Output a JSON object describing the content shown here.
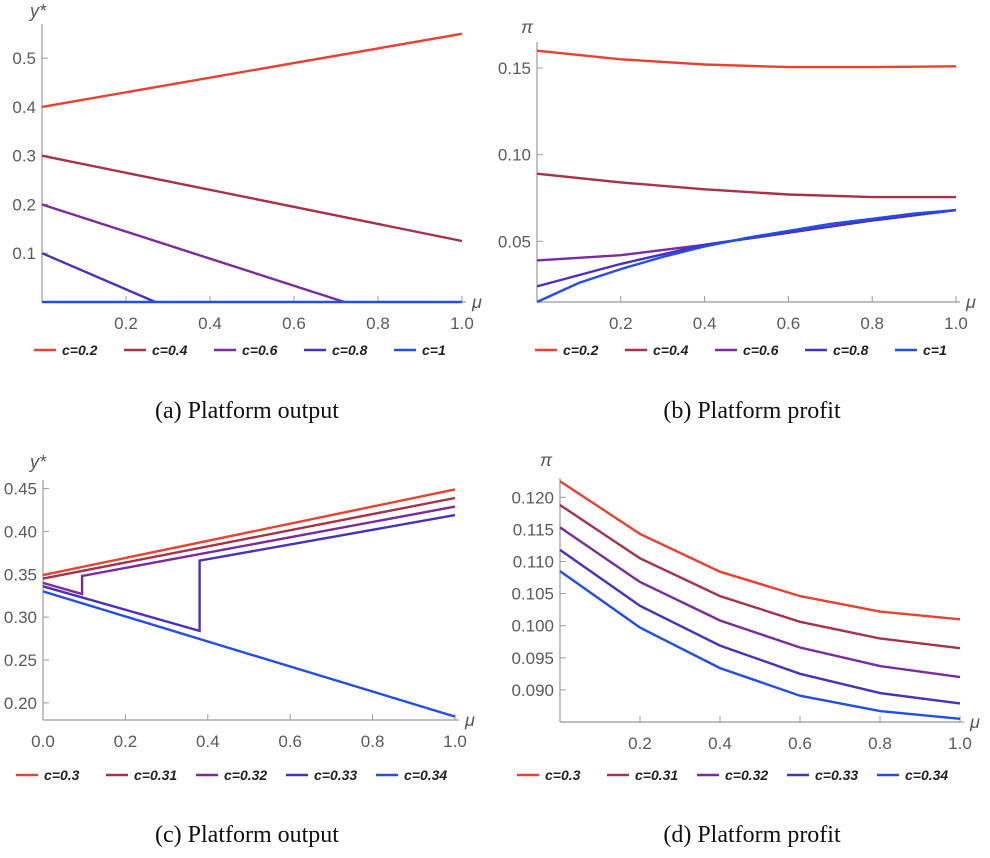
{
  "chart_data": [
    {
      "id": "a",
      "type": "line",
      "caption": "(a) Platform output",
      "xlabel": "μ",
      "ylabel": "y*",
      "xlim": [
        0,
        1
      ],
      "ylim": [
        0,
        0.57
      ],
      "xticks": [
        0.2,
        0.4,
        0.6,
        0.8,
        1.0
      ],
      "xtick_labels": [
        "0.2",
        "0.4",
        "0.6",
        "0.8",
        "1.0"
      ],
      "yticks": [
        0.1,
        0.2,
        0.3,
        0.4,
        0.5
      ],
      "ytick_labels": [
        "0.1",
        "0.2",
        "0.3",
        "0.4",
        "0.5"
      ],
      "legend_position": "bottom",
      "series": [
        {
          "name": "c=0.2",
          "color": "#e8412f",
          "x": [
            0,
            1
          ],
          "y": [
            0.4,
            0.55
          ]
        },
        {
          "name": "c=0.4",
          "color": "#a53249",
          "x": [
            0,
            1
          ],
          "y": [
            0.3,
            0.125
          ]
        },
        {
          "name": "c=0.6",
          "color": "#7a2b9e",
          "x": [
            0,
            0.72
          ],
          "y": [
            0.2,
            0.0
          ]
        },
        {
          "name": "c=0.8",
          "color": "#4a2fc0",
          "x": [
            0,
            0.27
          ],
          "y": [
            0.1,
            0.0
          ]
        },
        {
          "name": "c=1",
          "color": "#1f4fe6",
          "x": [
            0,
            1
          ],
          "y": [
            0.0,
            0.0
          ]
        }
      ]
    },
    {
      "id": "b",
      "type": "line",
      "caption": "(b) Platform profit",
      "xlabel": "μ",
      "ylabel": "π",
      "xlim": [
        0,
        1
      ],
      "ylim": [
        0.015,
        0.165
      ],
      "xticks": [
        0.2,
        0.4,
        0.6,
        0.8,
        1.0
      ],
      "xtick_labels": [
        "0.2",
        "0.4",
        "0.6",
        "0.8",
        "1.0"
      ],
      "yticks": [
        0.05,
        0.1,
        0.15
      ],
      "ytick_labels": [
        "0.05",
        "0.10",
        "0.15"
      ],
      "legend_position": "bottom",
      "series": [
        {
          "name": "c=0.2",
          "color": "#e8412f",
          "x": [
            0,
            0.2,
            0.4,
            0.6,
            0.8,
            1.0
          ],
          "y": [
            0.16,
            0.155,
            0.152,
            0.1505,
            0.1505,
            0.151
          ]
        },
        {
          "name": "c=0.4",
          "color": "#a53249",
          "x": [
            0,
            0.2,
            0.4,
            0.6,
            0.8,
            1.0
          ],
          "y": [
            0.089,
            0.084,
            0.08,
            0.077,
            0.0755,
            0.0755
          ]
        },
        {
          "name": "c=0.6",
          "color": "#7a2b9e",
          "x": [
            0,
            0.2,
            0.4,
            0.6,
            0.8,
            1.0
          ],
          "y": [
            0.039,
            0.042,
            0.048,
            0.055,
            0.062,
            0.068
          ]
        },
        {
          "name": "c=0.8",
          "color": "#4a2fc0",
          "x": [
            0,
            0.2,
            0.4,
            0.6,
            0.8,
            1.0
          ],
          "y": [
            0.024,
            0.037,
            0.048,
            0.055,
            0.062,
            0.068
          ]
        },
        {
          "name": "c=1",
          "color": "#1f4fe6",
          "x": [
            0,
            0.1,
            0.2,
            0.3,
            0.4,
            0.5,
            0.6,
            0.7,
            0.8,
            0.9,
            1.0
          ],
          "y": [
            0.015,
            0.026,
            0.034,
            0.041,
            0.047,
            0.052,
            0.056,
            0.06,
            0.063,
            0.066,
            0.068
          ]
        }
      ]
    },
    {
      "id": "c",
      "type": "line",
      "caption": "(c) Platform output",
      "xlabel": "μ",
      "ylabel": "y*",
      "xlim": [
        0,
        1
      ],
      "ylim": [
        0.18,
        0.46
      ],
      "xticks": [
        0,
        0.2,
        0.4,
        0.6,
        0.8,
        1.0
      ],
      "xtick_labels": [
        "0.0",
        "0.2",
        "0.4",
        "0.6",
        "0.8",
        "1.0"
      ],
      "yticks": [
        0.2,
        0.25,
        0.3,
        0.35,
        0.4,
        0.45
      ],
      "ytick_labels": [
        "0.20",
        "0.25",
        "0.30",
        "0.35",
        "0.40",
        "0.45"
      ],
      "legend_position": "bottom",
      "series": [
        {
          "name": "c=0.3",
          "color": "#e8412f",
          "x": [
            0,
            1
          ],
          "y": [
            0.349,
            0.449
          ]
        },
        {
          "name": "c=0.31",
          "color": "#a53249",
          "x": [
            0,
            1
          ],
          "y": [
            0.345,
            0.439
          ]
        },
        {
          "name": "c=0.32",
          "color": "#7a2b9e",
          "x": [
            0,
            0.095,
            0.095,
            1.0
          ],
          "y": [
            0.34,
            0.327,
            0.348,
            0.429
          ]
        },
        {
          "name": "c=0.33",
          "color": "#4a2fc0",
          "x": [
            0,
            0.38,
            0.38,
            1.0
          ],
          "y": [
            0.336,
            0.284,
            0.366,
            0.419
          ]
        },
        {
          "name": "c=0.34",
          "color": "#1f4fe6",
          "x": [
            0,
            1
          ],
          "y": [
            0.33,
            0.184
          ]
        }
      ]
    },
    {
      "id": "d",
      "type": "line",
      "caption": "(d) Platform profit",
      "xlabel": "μ",
      "ylabel": "π",
      "xlim": [
        0,
        1
      ],
      "ylim": [
        0.085,
        0.123
      ],
      "xticks": [
        0.2,
        0.4,
        0.6,
        0.8,
        1.0
      ],
      "xtick_labels": [
        "0.2",
        "0.4",
        "0.6",
        "0.8",
        "1.0"
      ],
      "yticks": [
        0.09,
        0.095,
        0.1,
        0.105,
        0.11,
        0.115,
        0.12
      ],
      "ytick_labels": [
        "0.090",
        "0.095",
        "0.100",
        "0.105",
        "0.110",
        "0.115",
        "0.120"
      ],
      "legend_position": "bottom",
      "series": [
        {
          "name": "c=0.3",
          "color": "#e8412f",
          "x": [
            0,
            0.2,
            0.4,
            0.6,
            0.8,
            1.0
          ],
          "y": [
            0.1225,
            0.1143,
            0.1084,
            0.1046,
            0.1022,
            0.101
          ]
        },
        {
          "name": "c=0.31",
          "color": "#a53249",
          "x": [
            0,
            0.2,
            0.4,
            0.6,
            0.8,
            1.0
          ],
          "y": [
            0.1188,
            0.1105,
            0.1046,
            0.1006,
            0.098,
            0.0965
          ]
        },
        {
          "name": "c=0.32",
          "color": "#7a2b9e",
          "x": [
            0,
            0.2,
            0.4,
            0.6,
            0.8,
            1.0
          ],
          "y": [
            0.1153,
            0.1068,
            0.1008,
            0.0966,
            0.0937,
            0.092
          ]
        },
        {
          "name": "c=0.33",
          "color": "#4a2fc0",
          "x": [
            0,
            0.2,
            0.4,
            0.6,
            0.8,
            1.0
          ],
          "y": [
            0.1118,
            0.1031,
            0.0969,
            0.0925,
            0.0895,
            0.0879
          ]
        },
        {
          "name": "c=0.34",
          "color": "#1f4fe6",
          "x": [
            0,
            0.2,
            0.4,
            0.6,
            0.8,
            1.0
          ],
          "y": [
            0.1085,
            0.0997,
            0.0934,
            0.0891,
            0.0867,
            0.0855
          ]
        }
      ]
    }
  ]
}
